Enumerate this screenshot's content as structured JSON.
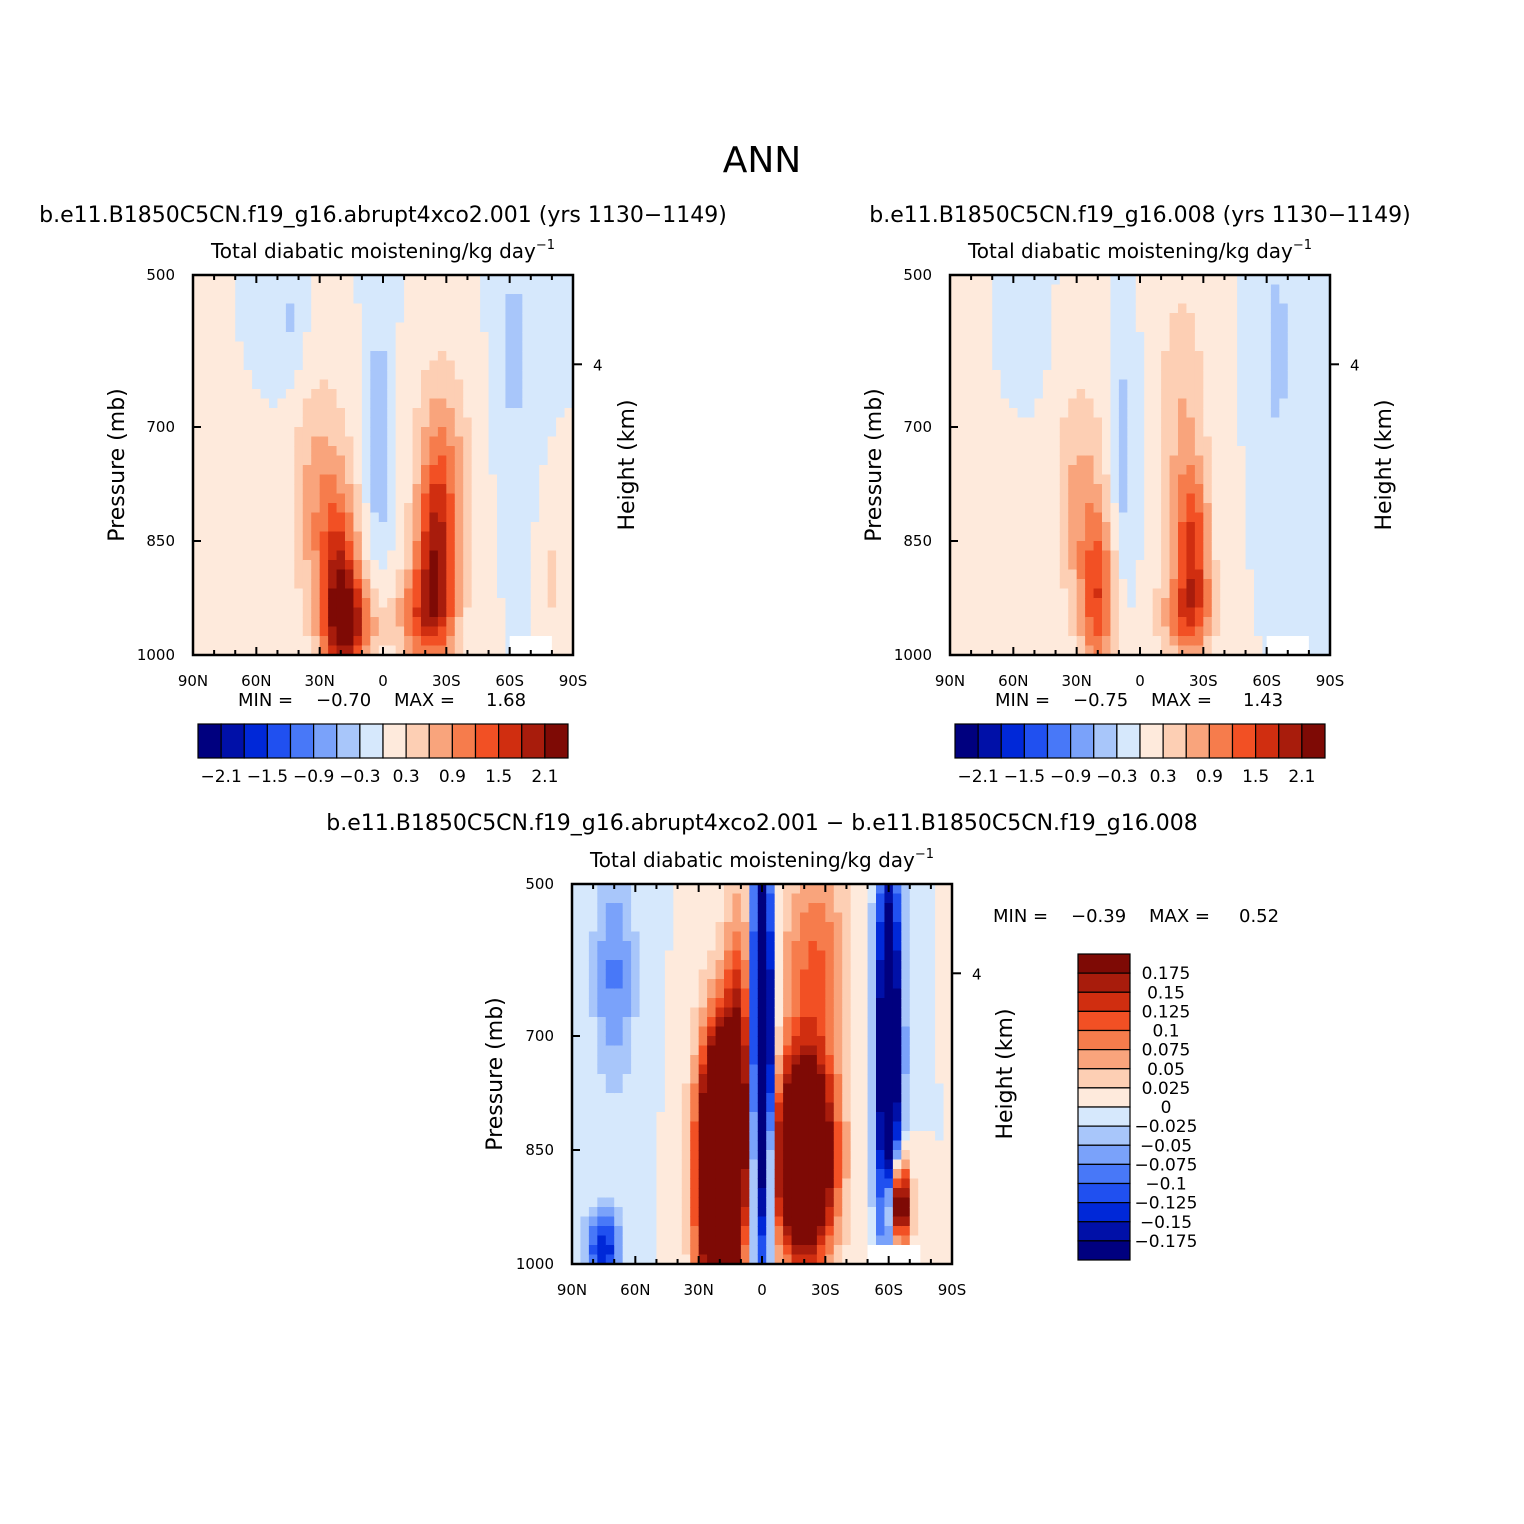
{
  "main_title": "ANN",
  "panels": [
    {
      "id": "p1",
      "title": "b.e11.B1850C5CN.f19_g16.abrupt4xco2.001 (yrs 1130−1149)",
      "subtitle": "Total diabatic moistening/kg day",
      "subtitle_sup": "−1",
      "ylabel_left": "Pressure (mb)",
      "ylabel_right": "Height (km)",
      "min_label": "MIN =",
      "min_value": "−0.70",
      "max_label": "MAX =",
      "max_value": "1.68"
    },
    {
      "id": "p2",
      "title": "b.e11.B1850C5CN.f19_g16.008 (yrs 1130−1149)",
      "subtitle": "Total diabatic moistening/kg day",
      "subtitle_sup": "−1",
      "ylabel_left": "Pressure (mb)",
      "ylabel_right": "Height (km)",
      "min_label": "MIN =",
      "min_value": "−0.75",
      "max_label": "MAX =",
      "max_value": "1.43"
    },
    {
      "id": "p3",
      "title": "b.e11.B1850C5CN.f19_g16.abrupt4xco2.001 − b.e11.B1850C5CN.f19_g16.008",
      "subtitle": "Total diabatic moistening/kg day",
      "subtitle_sup": "−1",
      "ylabel_left": "Pressure (mb)",
      "ylabel_right": "Height (km)",
      "min_label": "MIN =",
      "min_value": "−0.39",
      "max_label": "MAX =",
      "max_value": "0.52"
    }
  ],
  "colors": {
    "palette": [
      "#00007f",
      "#0010a8",
      "#0028d8",
      "#2050f0",
      "#4878f8",
      "#7aa2fa",
      "#a8c6fa",
      "#d6e8fc",
      "#feeadc",
      "#fdcfb4",
      "#f9a47c",
      "#f67c4c",
      "#f25024",
      "#d02e10",
      "#a81c0c",
      "#7e0a05"
    ],
    "fill_map": "#d6e8fc",
    "fill_missing": "#ffffff"
  },
  "chart_data": [
    {
      "type": "heatmap",
      "panel": "p1",
      "title": "b.e11.B1850C5CN.f19_g16.abrupt4xco2.001 (yrs 1130−1149)",
      "x_ticks": [
        "90N",
        "60N",
        "30N",
        "0",
        "30S",
        "60S",
        "90S"
      ],
      "x_range": [
        90,
        -90
      ],
      "y_ticks": [
        "500",
        "700",
        "850",
        "1000"
      ],
      "y_range_mb": [
        500,
        1000
      ],
      "right_axis_ticks": [
        "4"
      ],
      "colorbar_labels": [
        "−2.1",
        "−1.5",
        "−0.9",
        "−0.3",
        "0.3",
        "0.9",
        "1.5",
        "2.1"
      ],
      "colorbar_levels": [
        -2.1,
        -1.8,
        -1.5,
        -1.2,
        -0.9,
        -0.6,
        -0.3,
        0,
        0.3,
        0.6,
        0.9,
        1.2,
        1.5,
        1.8,
        2.1
      ],
      "min": -0.7,
      "max": 1.68,
      "features": [
        {
          "lat": 20,
          "p": 920,
          "value": 1.6,
          "lat_w": 9,
          "p_w": 120
        },
        {
          "lat": 15,
          "p": 960,
          "value": 1.3,
          "lat_w": 12,
          "p_w": 60
        },
        {
          "lat": -25,
          "p": 870,
          "value": 1.35,
          "lat_w": 9,
          "p_w": 110
        },
        {
          "lat": -20,
          "p": 950,
          "value": 1.2,
          "lat_w": 14,
          "p_w": 70
        },
        {
          "lat": 30,
          "p": 800,
          "value": 0.8,
          "lat_w": 14,
          "p_w": 160
        },
        {
          "lat": -28,
          "p": 760,
          "value": 0.9,
          "lat_w": 13,
          "p_w": 150
        },
        {
          "lat": 2,
          "p": 720,
          "value": -0.55,
          "lat_w": 6,
          "p_w": 170
        },
        {
          "lat": 45,
          "p": 560,
          "value": -0.35,
          "lat_w": 8,
          "p_w": 90
        },
        {
          "lat": -62,
          "p": 600,
          "value": -0.4,
          "lat_w": 8,
          "p_w": 160
        },
        {
          "lat": -80,
          "p": 900,
          "value": 0.4,
          "lat_w": 5,
          "p_w": 80
        }
      ],
      "missing_box": {
        "lat": [
          -60,
          -80
        ],
        "p": [
          975,
          1000
        ]
      }
    },
    {
      "type": "heatmap",
      "panel": "p2",
      "title": "b.e11.B1850C5CN.f19_g16.008 (yrs 1130−1149)",
      "x_ticks": [
        "90N",
        "60N",
        "30N",
        "0",
        "30S",
        "60S",
        "90S"
      ],
      "x_range": [
        90,
        -90
      ],
      "y_ticks": [
        "500",
        "700",
        "850",
        "1000"
      ],
      "y_range_mb": [
        500,
        1000
      ],
      "right_axis_ticks": [
        "4"
      ],
      "colorbar_labels": [
        "−2.1",
        "−1.5",
        "−0.9",
        "−0.3",
        "0.3",
        "0.9",
        "1.5",
        "2.1"
      ],
      "colorbar_levels": [
        -2.1,
        -1.8,
        -1.5,
        -1.2,
        -0.9,
        -0.6,
        -0.3,
        0,
        0.3,
        0.6,
        0.9,
        1.2,
        1.5,
        1.8,
        2.1
      ],
      "min": -0.75,
      "max": 1.43,
      "features": [
        {
          "lat": 20,
          "p": 930,
          "value": 1.25,
          "lat_w": 8,
          "p_w": 110
        },
        {
          "lat": -25,
          "p": 860,
          "value": 1.35,
          "lat_w": 8,
          "p_w": 100
        },
        {
          "lat": -22,
          "p": 950,
          "value": 1.0,
          "lat_w": 13,
          "p_w": 60
        },
        {
          "lat": 28,
          "p": 800,
          "value": 0.7,
          "lat_w": 13,
          "p_w": 160
        },
        {
          "lat": -20,
          "p": 700,
          "value": 0.6,
          "lat_w": 12,
          "p_w": 190
        },
        {
          "lat": 8,
          "p": 740,
          "value": -0.5,
          "lat_w": 6,
          "p_w": 150
        },
        {
          "lat": 50,
          "p": 560,
          "value": -0.3,
          "lat_w": 6,
          "p_w": 70
        },
        {
          "lat": -65,
          "p": 600,
          "value": -0.4,
          "lat_w": 8,
          "p_w": 170
        }
      ],
      "missing_box": {
        "lat": [
          -60,
          -80
        ],
        "p": [
          975,
          1000
        ]
      }
    },
    {
      "type": "heatmap",
      "panel": "p3",
      "title": "b.e11.B1850C5CN.f19_g16.abrupt4xco2.001 − b.e11.B1850C5CN.f19_g16.008",
      "x_ticks": [
        "90N",
        "60N",
        "30N",
        "0",
        "30S",
        "60S",
        "90S"
      ],
      "x_range": [
        90,
        -90
      ],
      "y_ticks": [
        "500",
        "700",
        "850",
        "1000"
      ],
      "y_range_mb": [
        500,
        1000
      ],
      "right_axis_ticks": [
        "4"
      ],
      "colorbar_labels": [
        "0.175",
        "0.15",
        "0.125",
        "0.1",
        "0.075",
        "0.05",
        "0.025",
        "0",
        "−0.025",
        "−0.05",
        "−0.075",
        "−0.1",
        "−0.125",
        "−0.15",
        "−0.175"
      ],
      "colorbar_levels": [
        -0.175,
        -0.15,
        -0.125,
        -0.1,
        -0.075,
        -0.05,
        -0.025,
        0,
        0.025,
        0.05,
        0.075,
        0.1,
        0.125,
        0.15,
        0.175
      ],
      "min": -0.39,
      "max": 0.52,
      "features": [
        {
          "lat": 20,
          "p": 880,
          "value": 0.5,
          "lat_w": 10,
          "p_w": 170
        },
        {
          "lat": -20,
          "p": 860,
          "value": 0.4,
          "lat_w": 14,
          "p_w": 130
        },
        {
          "lat": 10,
          "p": 720,
          "value": 0.14,
          "lat_w": 8,
          "p_w": 200
        },
        {
          "lat": 0,
          "p": 720,
          "value": -0.4,
          "lat_w": 5,
          "p_w": 260
        },
        {
          "lat": -60,
          "p": 720,
          "value": -0.3,
          "lat_w": 6,
          "p_w": 260
        },
        {
          "lat": -65,
          "p": 920,
          "value": 0.3,
          "lat_w": 5,
          "p_w": 60
        },
        {
          "lat": -25,
          "p": 600,
          "value": 0.1,
          "lat_w": 16,
          "p_w": 140
        },
        {
          "lat": 75,
          "p": 980,
          "value": -0.15,
          "lat_w": 8,
          "p_w": 50
        },
        {
          "lat": 70,
          "p": 620,
          "value": -0.08,
          "lat_w": 10,
          "p_w": 150
        }
      ],
      "missing_box": {
        "lat": [
          -50,
          -75
        ],
        "p": [
          975,
          1000
        ]
      }
    }
  ]
}
